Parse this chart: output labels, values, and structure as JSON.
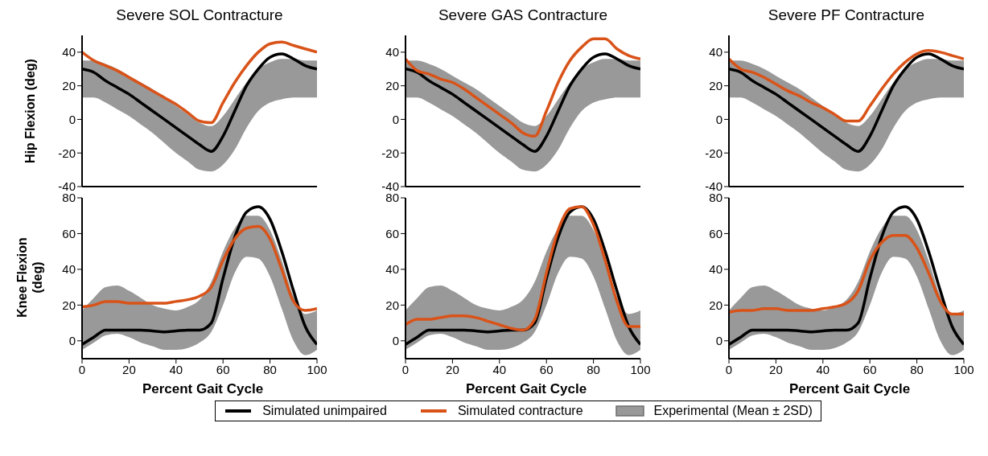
{
  "chart_data": [
    {
      "type": "line",
      "title": "Severe SOL Contracture",
      "ylabel": "Hip Flexion (deg)",
      "tick_labels": "y",
      "x": [
        0,
        5,
        10,
        15,
        20,
        25,
        30,
        35,
        40,
        45,
        50,
        55,
        60,
        65,
        70,
        75,
        80,
        85,
        90,
        95,
        100
      ],
      "xlim": [
        0,
        100
      ],
      "xticks": [
        0,
        20,
        40,
        60,
        80,
        100
      ],
      "ylim": [
        -40,
        50
      ],
      "yticks": [
        -40,
        -20,
        0,
        20,
        40
      ],
      "grid": false,
      "legend": false,
      "series": [
        {
          "type": "line",
          "color": "#000000",
          "values": [
            30,
            28,
            23,
            19,
            15,
            10,
            5,
            0,
            -5,
            -10,
            -15,
            -19,
            -10,
            5,
            20,
            30,
            37,
            39,
            36,
            32,
            30
          ]
        },
        {
          "type": "line",
          "color": "#d95319",
          "values": [
            40,
            35,
            32,
            29,
            25,
            21,
            17,
            13,
            9,
            4,
            -1,
            -2,
            10,
            22,
            32,
            40,
            45,
            46,
            44,
            42,
            40
          ]
        },
        {
          "type": "area",
          "color": "#999999",
          "values": [
            null,
            null,
            null,
            null,
            null,
            null,
            null,
            null,
            null,
            null,
            null,
            null,
            null,
            null,
            null,
            null,
            null,
            null,
            null,
            null,
            null
          ],
          "lower": [
            13,
            13,
            10,
            6,
            2,
            -3,
            -8,
            -14,
            -20,
            -25,
            -30,
            -31,
            -27,
            -18,
            -5,
            5,
            10,
            12,
            13,
            13,
            13
          ],
          "upper": [
            35,
            35,
            33,
            30,
            26,
            22,
            18,
            13,
            8,
            3,
            -2,
            -4,
            2,
            12,
            22,
            30,
            34,
            36,
            36,
            35,
            35
          ]
        }
      ]
    },
    {
      "type": "line",
      "title": "Severe GAS Contracture",
      "tick_labels": "y",
      "x": [
        0,
        5,
        10,
        15,
        20,
        25,
        30,
        35,
        40,
        45,
        50,
        55,
        60,
        65,
        70,
        75,
        80,
        85,
        90,
        95,
        100
      ],
      "xlim": [
        0,
        100
      ],
      "xticks": [
        0,
        20,
        40,
        60,
        80,
        100
      ],
      "ylim": [
        -40,
        50
      ],
      "yticks": [
        -40,
        -20,
        0,
        20,
        40
      ],
      "grid": false,
      "legend": false,
      "series": [
        {
          "type": "line",
          "color": "#000000",
          "values": [
            30,
            28,
            23,
            19,
            15,
            10,
            5,
            0,
            -5,
            -10,
            -15,
            -19,
            -10,
            5,
            20,
            30,
            37,
            39,
            36,
            32,
            30
          ]
        },
        {
          "type": "line",
          "color": "#d95319",
          "values": [
            36,
            29,
            27,
            24,
            22,
            18,
            13,
            8,
            3,
            -2,
            -8,
            -10,
            5,
            22,
            35,
            43,
            48,
            48,
            42,
            38,
            36
          ]
        },
        {
          "type": "area",
          "color": "#999999",
          "values": [
            null,
            null,
            null,
            null,
            null,
            null,
            null,
            null,
            null,
            null,
            null,
            null,
            null,
            null,
            null,
            null,
            null,
            null,
            null,
            null,
            null
          ],
          "lower": [
            13,
            13,
            10,
            6,
            2,
            -3,
            -8,
            -14,
            -20,
            -25,
            -30,
            -31,
            -27,
            -18,
            -5,
            5,
            10,
            12,
            13,
            13,
            13
          ],
          "upper": [
            35,
            35,
            33,
            30,
            26,
            22,
            18,
            13,
            8,
            3,
            -2,
            -4,
            2,
            12,
            22,
            30,
            34,
            36,
            36,
            35,
            35
          ]
        }
      ]
    },
    {
      "type": "line",
      "title": "Severe PF Contracture",
      "tick_labels": "y",
      "x": [
        0,
        5,
        10,
        15,
        20,
        25,
        30,
        35,
        40,
        45,
        50,
        55,
        60,
        65,
        70,
        75,
        80,
        85,
        90,
        95,
        100
      ],
      "xlim": [
        0,
        100
      ],
      "xticks": [
        0,
        20,
        40,
        60,
        80,
        100
      ],
      "ylim": [
        -40,
        50
      ],
      "yticks": [
        -40,
        -20,
        0,
        20,
        40
      ],
      "grid": false,
      "legend": false,
      "series": [
        {
          "type": "line",
          "color": "#000000",
          "values": [
            30,
            28,
            23,
            19,
            15,
            10,
            5,
            0,
            -5,
            -10,
            -15,
            -19,
            -10,
            5,
            20,
            30,
            37,
            39,
            36,
            32,
            30
          ]
        },
        {
          "type": "line",
          "color": "#d95319",
          "values": [
            36,
            30,
            28,
            25,
            21,
            17,
            14,
            10,
            7,
            3,
            -1,
            -1,
            8,
            18,
            27,
            34,
            39,
            41,
            40,
            38,
            36
          ]
        },
        {
          "type": "area",
          "color": "#999999",
          "values": [
            null,
            null,
            null,
            null,
            null,
            null,
            null,
            null,
            null,
            null,
            null,
            null,
            null,
            null,
            null,
            null,
            null,
            null,
            null,
            null,
            null
          ],
          "lower": [
            13,
            13,
            10,
            6,
            2,
            -3,
            -8,
            -14,
            -20,
            -25,
            -30,
            -31,
            -27,
            -18,
            -5,
            5,
            10,
            12,
            13,
            13,
            13
          ],
          "upper": [
            35,
            35,
            33,
            30,
            26,
            22,
            18,
            13,
            8,
            3,
            -2,
            -4,
            2,
            12,
            22,
            30,
            34,
            36,
            36,
            35,
            35
          ]
        }
      ]
    },
    {
      "type": "line",
      "xlabel": "Percent Gait Cycle",
      "ylabel": "Knee Flexion (deg)",
      "x": [
        0,
        5,
        10,
        15,
        20,
        25,
        30,
        35,
        40,
        45,
        50,
        55,
        60,
        65,
        70,
        75,
        80,
        85,
        90,
        95,
        100
      ],
      "xlim": [
        0,
        100
      ],
      "xticks": [
        0,
        20,
        40,
        60,
        80,
        100
      ],
      "ylim": [
        -10,
        80
      ],
      "yticks": [
        0,
        20,
        40,
        60,
        80
      ],
      "grid": false,
      "legend": false,
      "series": [
        {
          "type": "line",
          "color": "#000000",
          "values": [
            -2,
            2,
            6,
            6,
            6,
            6,
            5.5,
            5,
            5.5,
            6,
            6,
            10,
            35,
            58,
            72,
            75,
            68,
            50,
            28,
            8,
            -2
          ]
        },
        {
          "type": "line",
          "color": "#d95319",
          "values": [
            19,
            20,
            22,
            22,
            21,
            21,
            21,
            21,
            22,
            23,
            25,
            30,
            45,
            57,
            63,
            64,
            57,
            40,
            22,
            17,
            18
          ]
        },
        {
          "type": "area",
          "color": "#999999",
          "values": [
            null,
            null,
            null,
            null,
            null,
            null,
            null,
            null,
            null,
            null,
            null,
            null,
            null,
            null,
            null,
            null,
            null,
            null,
            null,
            null,
            null
          ],
          "lower": [
            -5,
            -1,
            3,
            4,
            2,
            -1,
            -3,
            -5,
            -5,
            -4,
            -1,
            5,
            20,
            38,
            47,
            46,
            36,
            18,
            0,
            -8,
            -5
          ],
          "upper": [
            17,
            24,
            30,
            31,
            28,
            24,
            20,
            18,
            17,
            19,
            23,
            33,
            50,
            63,
            70,
            70,
            62,
            45,
            25,
            15,
            17
          ]
        }
      ]
    },
    {
      "type": "line",
      "xlabel": "Percent Gait Cycle",
      "x": [
        0,
        5,
        10,
        15,
        20,
        25,
        30,
        35,
        40,
        45,
        50,
        55,
        60,
        65,
        70,
        75,
        80,
        85,
        90,
        95,
        100
      ],
      "xlim": [
        0,
        100
      ],
      "xticks": [
        0,
        20,
        40,
        60,
        80,
        100
      ],
      "ylim": [
        -10,
        80
      ],
      "yticks": [
        0,
        20,
        40,
        60,
        80
      ],
      "grid": false,
      "legend": "bottom",
      "series": [
        {
          "type": "line",
          "name": "Simulated unimpaired",
          "color": "#000000",
          "values": [
            -2,
            2,
            6,
            6,
            6,
            6,
            5.5,
            5,
            5.5,
            6,
            6,
            10,
            35,
            58,
            72,
            75,
            68,
            50,
            28,
            8,
            -2
          ]
        },
        {
          "type": "line",
          "name": "Simulated contracture",
          "color": "#d95319",
          "values": [
            9,
            12,
            12,
            13,
            14,
            14,
            13,
            11,
            9,
            7,
            6,
            12,
            38,
            62,
            74,
            75,
            65,
            45,
            22,
            8,
            8
          ]
        },
        {
          "type": "area",
          "name": "Experimental (Mean ± 2SD)",
          "color": "#999999",
          "values": [
            null,
            null,
            null,
            null,
            null,
            null,
            null,
            null,
            null,
            null,
            null,
            null,
            null,
            null,
            null,
            null,
            null,
            null,
            null,
            null,
            null
          ],
          "lower": [
            -5,
            -1,
            3,
            4,
            2,
            -1,
            -3,
            -5,
            -5,
            -4,
            -1,
            5,
            20,
            38,
            47,
            46,
            36,
            18,
            0,
            -8,
            -5
          ],
          "upper": [
            17,
            24,
            30,
            31,
            28,
            24,
            20,
            18,
            17,
            19,
            23,
            33,
            50,
            63,
            70,
            70,
            62,
            45,
            25,
            15,
            17
          ]
        }
      ]
    },
    {
      "type": "line",
      "xlabel": "Percent Gait Cycle",
      "x": [
        0,
        5,
        10,
        15,
        20,
        25,
        30,
        35,
        40,
        45,
        50,
        55,
        60,
        65,
        70,
        75,
        80,
        85,
        90,
        95,
        100
      ],
      "xlim": [
        0,
        100
      ],
      "xticks": [
        0,
        20,
        40,
        60,
        80,
        100
      ],
      "ylim": [
        -10,
        80
      ],
      "yticks": [
        0,
        20,
        40,
        60,
        80
      ],
      "grid": false,
      "legend": false,
      "series": [
        {
          "type": "line",
          "color": "#000000",
          "values": [
            -2,
            2,
            6,
            6,
            6,
            6,
            5.5,
            5,
            5.5,
            6,
            6,
            10,
            35,
            58,
            72,
            75,
            68,
            50,
            28,
            8,
            -2
          ]
        },
        {
          "type": "line",
          "color": "#d95319",
          "values": [
            16,
            17,
            17,
            18,
            18,
            17,
            17,
            17,
            18,
            19,
            21,
            28,
            45,
            55,
            59,
            59,
            52,
            38,
            22,
            15,
            15
          ]
        },
        {
          "type": "area",
          "color": "#999999",
          "values": [
            null,
            null,
            null,
            null,
            null,
            null,
            null,
            null,
            null,
            null,
            null,
            null,
            null,
            null,
            null,
            null,
            null,
            null,
            null,
            null,
            null
          ],
          "lower": [
            -5,
            -1,
            3,
            4,
            2,
            -1,
            -3,
            -5,
            -5,
            -4,
            -1,
            5,
            20,
            38,
            47,
            46,
            36,
            18,
            0,
            -8,
            -5
          ],
          "upper": [
            17,
            24,
            30,
            31,
            28,
            24,
            20,
            18,
            17,
            19,
            23,
            33,
            50,
            63,
            70,
            70,
            62,
            45,
            25,
            15,
            17
          ]
        }
      ]
    }
  ]
}
